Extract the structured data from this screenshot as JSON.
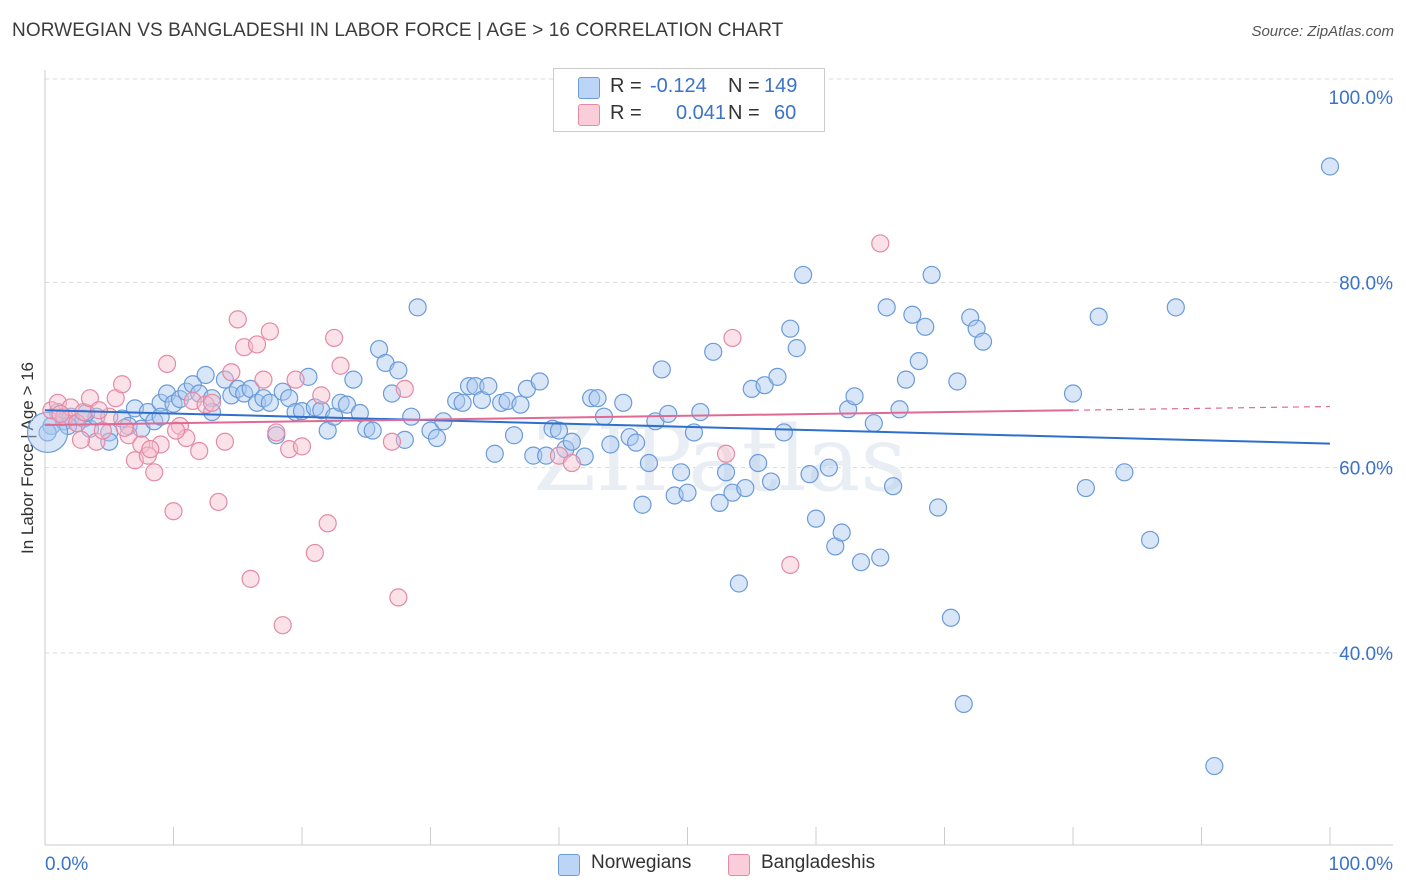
{
  "header": {
    "title": "NORWEGIAN VS BANGLADESHI IN LABOR FORCE | AGE > 16 CORRELATION CHART",
    "source": "Source: ZipAtlas.com"
  },
  "legend": {
    "series": [
      {
        "name": "Norwegians",
        "r_label": "R =",
        "r_value": "-0.124",
        "n_label": "N =",
        "n_value": "149",
        "fill": "#a9c8f0",
        "stroke": "#6b9bd8"
      },
      {
        "name": "Bangladeshis",
        "r_label": "R =",
        "r_value": "0.041",
        "n_label": "N =",
        "n_value": "60",
        "fill": "#f7bccd",
        "stroke": "#e48aa6"
      }
    ]
  },
  "colors": {
    "blue_line": "#2f6fcc",
    "pink_line": "#e06a94",
    "axis_tick_text": "#3b73c8",
    "grid": "#d8d8d8"
  },
  "watermark": "ZIPatlas",
  "chart_data": {
    "type": "scatter",
    "title": "NORWEGIAN VS BANGLADESHI IN LABOR FORCE | AGE > 16 CORRELATION CHART",
    "xlabel": "",
    "ylabel": "In Labor Force | Age > 16",
    "xlim": [
      0,
      100
    ],
    "ylim": [
      20,
      102
    ],
    "x_tick_labels": [
      "0.0%",
      "100.0%"
    ],
    "y_ticks": [
      40,
      60,
      80,
      100
    ],
    "y_tick_labels": [
      "40.0%",
      "60.0%",
      "80.0%",
      "100.0%"
    ],
    "series": [
      {
        "name": "Norwegians",
        "trend": {
          "x": [
            0,
            100
          ],
          "y": [
            66.2,
            62.6
          ]
        },
        "points": [
          [
            0.5,
            64.5
          ],
          [
            1,
            66
          ],
          [
            1.5,
            65
          ],
          [
            2,
            65.5
          ],
          [
            2.5,
            64.8
          ],
          [
            3,
            65.3
          ],
          [
            3.5,
            64.2
          ],
          [
            4,
            65.5
          ],
          [
            5,
            63.8
          ],
          [
            5,
            62.8
          ],
          [
            6,
            65.3
          ],
          [
            6.5,
            64.5
          ],
          [
            7,
            66.4
          ],
          [
            7.5,
            64.2
          ],
          [
            8,
            66
          ],
          [
            8.5,
            65
          ],
          [
            9,
            67
          ],
          [
            9,
            65.5
          ],
          [
            9.5,
            68
          ],
          [
            10,
            66.9
          ],
          [
            10.5,
            67.4
          ],
          [
            11,
            68.2
          ],
          [
            11.5,
            69
          ],
          [
            12,
            68
          ],
          [
            12.5,
            70
          ],
          [
            13,
            67.5
          ],
          [
            13,
            66
          ],
          [
            14,
            69.5
          ],
          [
            14.5,
            67.8
          ],
          [
            15,
            68.5
          ],
          [
            15.5,
            68
          ],
          [
            16,
            68.5
          ],
          [
            16.5,
            67
          ],
          [
            17,
            67.5
          ],
          [
            17.5,
            67
          ],
          [
            18,
            63.5
          ],
          [
            18.5,
            68.2
          ],
          [
            19,
            67.5
          ],
          [
            19.5,
            66
          ],
          [
            20,
            66.1
          ],
          [
            20.5,
            69.8
          ],
          [
            21,
            66.5
          ],
          [
            21.5,
            66.2
          ],
          [
            22,
            64
          ],
          [
            22.5,
            65.5
          ],
          [
            23,
            67
          ],
          [
            23.5,
            66.8
          ],
          [
            24,
            69.5
          ],
          [
            24.5,
            65.9
          ],
          [
            25,
            64.2
          ],
          [
            25.5,
            64
          ],
          [
            26,
            72.8
          ],
          [
            26.5,
            71.3
          ],
          [
            27,
            68
          ],
          [
            27.5,
            70.5
          ],
          [
            28,
            63
          ],
          [
            28.5,
            65.5
          ],
          [
            29,
            77.3
          ],
          [
            30,
            64
          ],
          [
            30.5,
            63.2
          ],
          [
            31,
            65
          ],
          [
            32,
            67.2
          ],
          [
            32.5,
            67
          ],
          [
            33,
            68.8
          ],
          [
            33.5,
            68.8
          ],
          [
            34,
            67.3
          ],
          [
            34.5,
            68.8
          ],
          [
            35,
            61.5
          ],
          [
            35.5,
            67
          ],
          [
            36,
            67.2
          ],
          [
            36.5,
            63.5
          ],
          [
            37,
            66.8
          ],
          [
            37.5,
            68.5
          ],
          [
            38,
            61.3
          ],
          [
            38.5,
            69.3
          ],
          [
            39,
            61.3
          ],
          [
            39.5,
            64.2
          ],
          [
            40,
            64
          ],
          [
            40.5,
            62
          ],
          [
            41,
            62.8
          ],
          [
            42,
            61.2
          ],
          [
            42.5,
            67.5
          ],
          [
            43,
            67.5
          ],
          [
            43.5,
            65.5
          ],
          [
            44,
            62.5
          ],
          [
            45,
            67
          ],
          [
            45.5,
            63.3
          ],
          [
            46,
            62.7
          ],
          [
            46.5,
            56
          ],
          [
            47,
            60.5
          ],
          [
            47.5,
            65
          ],
          [
            48,
            70.6
          ],
          [
            48.5,
            65.8
          ],
          [
            49,
            57
          ],
          [
            49.5,
            59.5
          ],
          [
            50,
            57.3
          ],
          [
            50.5,
            63.8
          ],
          [
            51,
            66
          ],
          [
            52,
            72.5
          ],
          [
            52.5,
            56.2
          ],
          [
            53,
            59.5
          ],
          [
            53.5,
            57.3
          ],
          [
            54,
            47.5
          ],
          [
            54.5,
            57.8
          ],
          [
            55,
            68.5
          ],
          [
            55.5,
            60.5
          ],
          [
            56,
            68.9
          ],
          [
            56.5,
            58.5
          ],
          [
            57,
            69.8
          ],
          [
            57.5,
            63.8
          ],
          [
            58,
            75
          ],
          [
            58.5,
            72.9
          ],
          [
            59,
            80.8
          ],
          [
            59.5,
            59.3
          ],
          [
            60,
            54.5
          ],
          [
            61,
            60
          ],
          [
            61.5,
            51.5
          ],
          [
            62,
            53
          ],
          [
            62.5,
            66.3
          ],
          [
            63,
            67.7
          ],
          [
            63.5,
            49.8
          ],
          [
            64.5,
            64.8
          ],
          [
            65,
            50.3
          ],
          [
            65.5,
            77.3
          ],
          [
            66,
            58
          ],
          [
            66.5,
            66.3
          ],
          [
            67,
            69.5
          ],
          [
            67.5,
            76.5
          ],
          [
            68,
            71.5
          ],
          [
            68.5,
            75.2
          ],
          [
            69,
            80.8
          ],
          [
            69.5,
            55.7
          ],
          [
            70.5,
            43.8
          ],
          [
            71,
            69.3
          ],
          [
            71.5,
            34.5
          ],
          [
            72,
            76.2
          ],
          [
            72.5,
            75
          ],
          [
            73,
            73.6
          ],
          [
            80,
            68
          ],
          [
            81,
            57.8
          ],
          [
            82,
            76.3
          ],
          [
            84,
            59.5
          ],
          [
            86,
            52.2
          ],
          [
            88,
            77.3
          ],
          [
            91,
            27.8
          ],
          [
            100,
            92.5
          ],
          [
            0.2,
            63.8
          ],
          [
            1.8,
            64.5
          ],
          [
            3.2,
            65.9
          ]
        ]
      },
      {
        "name": "Bangladeshis",
        "trend": {
          "x": [
            0,
            80
          ],
          "y": [
            64.6,
            66.2
          ]
        },
        "trend_dashed": {
          "x": [
            80,
            100
          ],
          "y": [
            66.2,
            66.6
          ]
        },
        "points": [
          [
            0.5,
            66.2
          ],
          [
            1,
            67
          ],
          [
            1.5,
            65.5
          ],
          [
            2,
            66.5
          ],
          [
            2.5,
            64.8
          ],
          [
            3,
            66
          ],
          [
            3.5,
            67.5
          ],
          [
            4,
            62.8
          ],
          [
            4.5,
            64
          ],
          [
            5,
            65.5
          ],
          [
            5.5,
            67.5
          ],
          [
            6,
            69
          ],
          [
            6.5,
            63.5
          ],
          [
            7,
            60.8
          ],
          [
            7.5,
            62.5
          ],
          [
            8,
            61.3
          ],
          [
            8.5,
            59.5
          ],
          [
            9,
            62.5
          ],
          [
            9.5,
            71.2
          ],
          [
            10,
            55.3
          ],
          [
            10.5,
            64.5
          ],
          [
            11,
            63.2
          ],
          [
            11.5,
            67.2
          ],
          [
            12,
            61.8
          ],
          [
            12.5,
            66.8
          ],
          [
            13,
            67
          ],
          [
            13.5,
            56.3
          ],
          [
            14,
            62.8
          ],
          [
            14.5,
            70.3
          ],
          [
            15,
            76
          ],
          [
            15.5,
            73
          ],
          [
            16,
            48
          ],
          [
            16.5,
            73.3
          ],
          [
            17,
            69.5
          ],
          [
            17.5,
            74.7
          ],
          [
            18,
            63.8
          ],
          [
            18.5,
            43
          ],
          [
            19,
            62
          ],
          [
            19.5,
            69.5
          ],
          [
            20,
            62.3
          ],
          [
            21,
            50.8
          ],
          [
            21.5,
            67.8
          ],
          [
            22,
            54
          ],
          [
            22.5,
            74
          ],
          [
            23,
            71
          ],
          [
            27,
            62.8
          ],
          [
            28,
            68.5
          ],
          [
            27.5,
            46
          ],
          [
            40,
            61.3
          ],
          [
            41,
            60.5
          ],
          [
            53,
            61.5
          ],
          [
            53.5,
            74
          ],
          [
            58,
            49.5
          ],
          [
            65,
            84.2
          ],
          [
            1.2,
            65.8
          ],
          [
            2.8,
            63
          ],
          [
            4.2,
            66.2
          ],
          [
            6.2,
            64.3
          ],
          [
            8.2,
            62
          ],
          [
            10.2,
            64
          ]
        ]
      }
    ]
  }
}
